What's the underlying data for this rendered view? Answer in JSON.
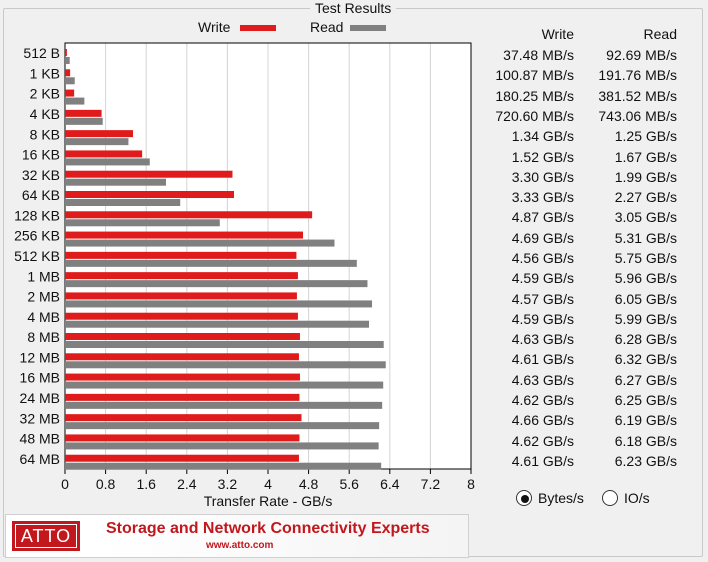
{
  "panel": {
    "title": "Test Results"
  },
  "legend": {
    "write": "Write",
    "read": "Read"
  },
  "colors": {
    "write": "#e01b1b",
    "read": "#808080",
    "accent": "#c2171d"
  },
  "table": {
    "write_header": "Write",
    "read_header": "Read"
  },
  "chart_data": {
    "type": "bar",
    "orientation": "horizontal",
    "categories": [
      "512 B",
      "1 KB",
      "2 KB",
      "4 KB",
      "8 KB",
      "16 KB",
      "32 KB",
      "64 KB",
      "128 KB",
      "256 KB",
      "512 KB",
      "1 MB",
      "2 MB",
      "4 MB",
      "8 MB",
      "12 MB",
      "16 MB",
      "24 MB",
      "32 MB",
      "48 MB",
      "64 MB"
    ],
    "series": [
      {
        "name": "Write",
        "color": "#e01b1b",
        "values": [
          0.0375,
          0.1009,
          0.1803,
          0.7206,
          1.34,
          1.52,
          3.3,
          3.33,
          4.87,
          4.69,
          4.56,
          4.59,
          4.57,
          4.59,
          4.63,
          4.61,
          4.63,
          4.62,
          4.66,
          4.62,
          4.61
        ],
        "labels": [
          "37.48 MB/s",
          "100.87 MB/s",
          "180.25 MB/s",
          "720.60 MB/s",
          "1.34 GB/s",
          "1.52 GB/s",
          "3.30 GB/s",
          "3.33 GB/s",
          "4.87 GB/s",
          "4.69 GB/s",
          "4.56 GB/s",
          "4.59 GB/s",
          "4.57 GB/s",
          "4.59 GB/s",
          "4.63 GB/s",
          "4.61 GB/s",
          "4.63 GB/s",
          "4.62 GB/s",
          "4.66 GB/s",
          "4.62 GB/s",
          "4.61 GB/s"
        ]
      },
      {
        "name": "Read",
        "color": "#808080",
        "values": [
          0.0927,
          0.1918,
          0.3815,
          0.7431,
          1.25,
          1.67,
          1.99,
          2.27,
          3.05,
          5.31,
          5.75,
          5.96,
          6.05,
          5.99,
          6.28,
          6.32,
          6.27,
          6.25,
          6.19,
          6.18,
          6.23
        ],
        "labels": [
          "92.69 MB/s",
          "191.76 MB/s",
          "381.52 MB/s",
          "743.06 MB/s",
          "1.25 GB/s",
          "1.67 GB/s",
          "1.99 GB/s",
          "2.27 GB/s",
          "3.05 GB/s",
          "5.31 GB/s",
          "5.75 GB/s",
          "5.96 GB/s",
          "6.05 GB/s",
          "5.99 GB/s",
          "6.28 GB/s",
          "6.32 GB/s",
          "6.27 GB/s",
          "6.25 GB/s",
          "6.19 GB/s",
          "6.18 GB/s",
          "6.23 GB/s"
        ]
      }
    ],
    "xlabel": "Transfer Rate - GB/s",
    "xticks": [
      "0",
      "0.8",
      "1.6",
      "2.4",
      "3.2",
      "4",
      "4.8",
      "5.6",
      "6.4",
      "7.2",
      "8"
    ],
    "xlim": [
      0,
      8
    ],
    "grid": true,
    "legend_position": "top"
  },
  "units": {
    "options": [
      {
        "label": "Bytes/s",
        "selected": true
      },
      {
        "label": "IO/s",
        "selected": false
      }
    ]
  },
  "banner": {
    "logo": "ATTO",
    "tagline": "Storage and Network Connectivity Experts",
    "url": "www.atto.com"
  }
}
